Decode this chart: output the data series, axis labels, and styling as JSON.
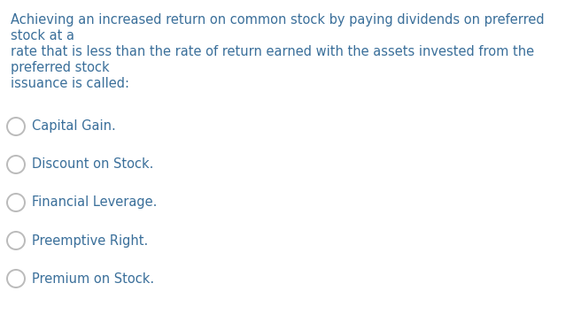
{
  "background_color": "#ffffff",
  "question_lines": [
    "Achieving an increased return on common stock by paying dividends on preferred",
    "stock at a",
    "rate that is less than the rate of return earned with the assets invested from the",
    "preferred stock",
    "issuance is called:"
  ],
  "question_color": "#3a6f9a",
  "options": [
    "Capital Gain.",
    "Discount on Stock.",
    "Financial Leverage.",
    "Preemptive Right.",
    "Premium on Stock."
  ],
  "option_color": "#3a6f9a",
  "circle_edge_color": "#bbbbbb",
  "circle_linewidth": 1.4,
  "question_fontsize": 10.5,
  "option_fontsize": 10.5,
  "fig_width": 6.56,
  "fig_height": 3.55,
  "dpi": 100
}
